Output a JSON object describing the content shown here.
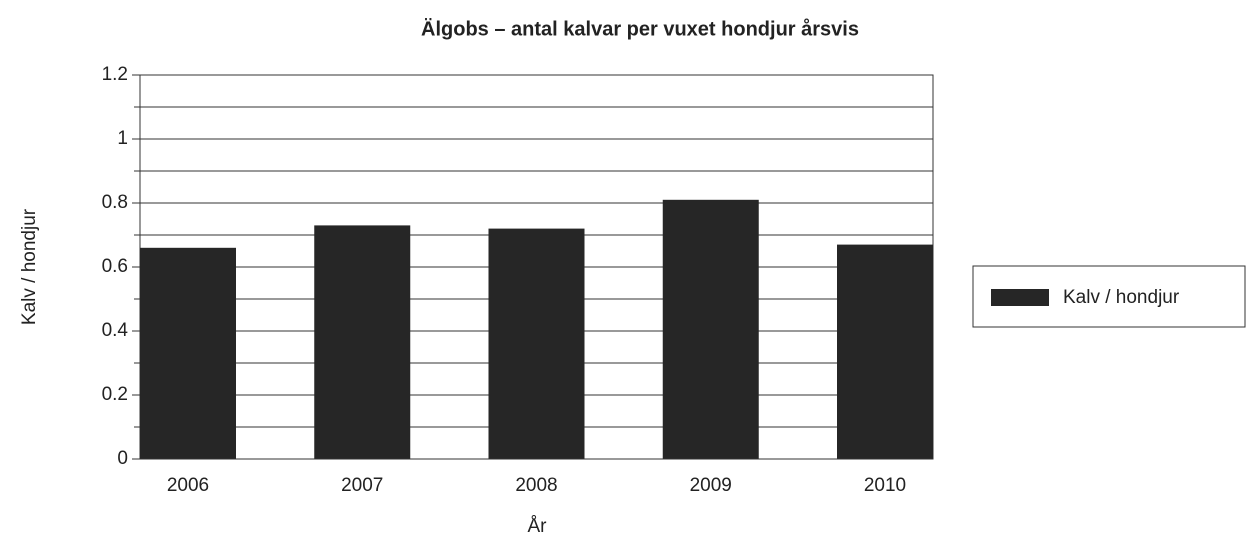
{
  "chart_data": {
    "type": "bar",
    "title": "Älgobs – antal kalvar per vuxet hondjur årsvis",
    "x_label": "År",
    "y_label": "Kalv / hondjur",
    "categories": [
      "2006",
      "2007",
      "2008",
      "2009",
      "2010"
    ],
    "series": [
      {
        "name": "Kalv / hondjur",
        "color": "#262626",
        "values": [
          0.66,
          0.73,
          0.72,
          0.81,
          0.67
        ]
      }
    ],
    "ylim": [
      0,
      1.2
    ],
    "yticks": [
      0,
      0.2,
      0.4,
      0.6,
      0.8,
      1,
      1.2
    ],
    "minor_yticks": [
      0.1,
      0.3,
      0.5,
      0.7,
      0.9,
      1.1
    ],
    "grid": true,
    "legend": "right"
  }
}
